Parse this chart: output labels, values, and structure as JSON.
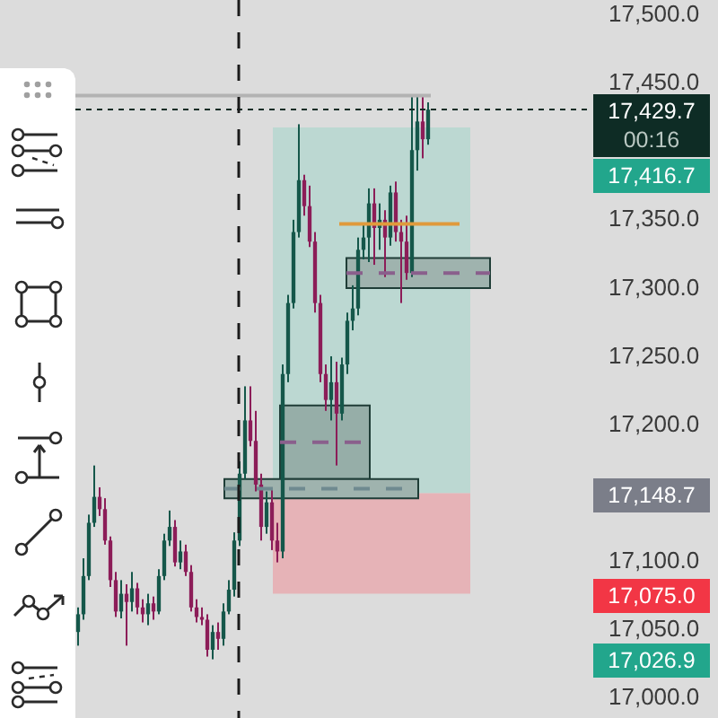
{
  "chart_data": {
    "type": "candlestick",
    "categories": [
      null,
      null,
      null,
      null,
      null,
      null,
      null,
      null,
      null,
      null,
      null,
      null,
      null,
      null,
      null,
      null,
      null,
      null,
      null,
      null,
      null,
      null,
      null,
      null,
      null,
      null,
      null,
      null,
      null,
      null,
      null,
      null,
      null,
      null,
      null,
      null,
      null,
      null,
      null,
      null,
      null,
      null,
      null,
      null,
      null,
      null,
      null,
      null,
      null,
      null,
      null,
      null,
      null,
      null,
      null,
      null,
      null,
      null,
      null,
      null,
      null,
      null,
      null,
      null,
      null,
      null,
      null,
      null,
      null,
      null,
      null,
      null,
      null,
      null,
      null,
      null,
      null,
      null,
      null,
      null,
      null,
      null,
      null,
      null,
      null,
      null,
      null,
      null,
      null,
      null,
      null,
      null,
      null,
      null,
      null,
      null
    ],
    "ohlc": [
      [
        17047,
        17065,
        17037,
        17060
      ],
      [
        17060,
        17101,
        17056,
        17088
      ],
      [
        17088,
        17133,
        17085,
        17127
      ],
      [
        17127,
        17169,
        17124,
        17146
      ],
      [
        17146,
        17153,
        17132,
        17137
      ],
      [
        17137,
        17145,
        17111,
        17114
      ],
      [
        17114,
        17117,
        17080,
        17085
      ],
      [
        17085,
        17091,
        17058,
        17062
      ],
      [
        17062,
        17085,
        17057,
        17075
      ],
      [
        17075,
        17082,
        17037,
        17069
      ],
      [
        17069,
        17091,
        17062,
        17079
      ],
      [
        17079,
        17083,
        17060,
        17065
      ],
      [
        17065,
        17071,
        17054,
        17060
      ],
      [
        17060,
        17075,
        17052,
        17068
      ],
      [
        17068,
        17073,
        17056,
        17062
      ],
      [
        17062,
        17093,
        17060,
        17088
      ],
      [
        17088,
        17119,
        17085,
        17114
      ],
      [
        17114,
        17136,
        17110,
        17124
      ],
      [
        17124,
        17129,
        17095,
        17098
      ],
      [
        17098,
        17114,
        17093,
        17106
      ],
      [
        17106,
        17111,
        17088,
        17091
      ],
      [
        17091,
        17096,
        17062,
        17065
      ],
      [
        17065,
        17071,
        17054,
        17058
      ],
      [
        17058,
        17065,
        17052,
        17056
      ],
      [
        17056,
        17060,
        17029,
        17034
      ],
      [
        17034,
        17052,
        17027,
        17047
      ],
      [
        17047,
        17054,
        17034,
        17042
      ],
      [
        17042,
        17068,
        17037,
        17062
      ],
      [
        17062,
        17085,
        17060,
        17078
      ],
      [
        17078,
        17120,
        17073,
        17114
      ],
      [
        17114,
        17172,
        17110,
        17163
      ],
      [
        17163,
        17227,
        17159,
        17202
      ],
      [
        17202,
        17227,
        17183,
        17187
      ],
      [
        17187,
        17209,
        17150,
        17155
      ],
      [
        17155,
        17163,
        17114,
        17124
      ],
      [
        17124,
        17150,
        17119,
        17142
      ],
      [
        17142,
        17153,
        17107,
        17114
      ],
      [
        17114,
        17127,
        17098,
        17106
      ],
      [
        17106,
        17243,
        17101,
        17236
      ],
      [
        17236,
        17294,
        17230,
        17288
      ],
      [
        17288,
        17349,
        17284,
        17340
      ],
      [
        17340,
        17419,
        17336,
        17378
      ],
      [
        17378,
        17382,
        17352,
        17359
      ],
      [
        17359,
        17374,
        17329,
        17333
      ],
      [
        17333,
        17340,
        17281,
        17288
      ],
      [
        17288,
        17294,
        17230,
        17236
      ],
      [
        17236,
        17243,
        17209,
        17217
      ],
      [
        17217,
        17249,
        17202,
        17230
      ],
      [
        17230,
        17245,
        17169,
        17207
      ],
      [
        17207,
        17248,
        17202,
        17243
      ],
      [
        17243,
        17281,
        17236,
        17275
      ],
      [
        17275,
        17301,
        17268,
        17284
      ],
      [
        17284,
        17336,
        17279,
        17327
      ],
      [
        17327,
        17346,
        17320,
        17336
      ],
      [
        17336,
        17372,
        17318,
        17361
      ],
      [
        17361,
        17372,
        17316,
        17343
      ],
      [
        17343,
        17361,
        17327,
        17349
      ],
      [
        17349,
        17356,
        17307,
        17336
      ],
      [
        17336,
        17374,
        17330,
        17369
      ],
      [
        17369,
        17377,
        17333,
        17340
      ],
      [
        17340,
        17349,
        17288,
        17333
      ],
      [
        17333,
        17352,
        17305,
        17310
      ],
      [
        17310,
        17439,
        17307,
        17400
      ],
      [
        17400,
        17440,
        17385,
        17421
      ],
      [
        17421,
        17439,
        17394,
        17408
      ],
      [
        17408,
        17435,
        17404,
        17429.7
      ],
      null,
      null,
      null,
      null,
      null,
      null,
      null,
      null,
      null,
      null,
      null,
      null,
      null,
      null,
      null,
      null,
      null,
      null,
      null,
      null,
      null,
      null,
      null,
      null,
      null,
      null,
      null,
      null,
      null,
      null
    ],
    "colors": [
      "#15574a",
      "#15574a",
      "#15574a",
      "#15574a",
      "#8c1d58",
      "#8c1d58",
      "#8c1d58",
      "#8c1d58",
      "#15574a",
      "#8c1d58",
      "#15574a",
      "#8c1d58",
      "#8c1d58",
      "#15574a",
      "#8c1d58",
      "#15574a",
      "#15574a",
      "#15574a",
      "#8c1d58",
      "#15574a",
      "#8c1d58",
      "#8c1d58",
      "#8c1d58",
      "#8c1d58",
      "#8c1d58",
      "#15574a",
      "#8c1d58",
      "#15574a",
      "#15574a",
      "#15574a",
      "#15574a",
      "#15574a",
      "#8c1d58",
      "#8c1d58",
      "#8c1d58",
      "#15574a",
      "#8c1d58",
      "#8c1d58",
      "#15574a",
      "#15574a",
      "#15574a",
      "#15574a",
      "#8c1d58",
      "#8c1d58",
      "#8c1d58",
      "#8c1d58",
      "#8c1d58",
      "#15574a",
      "#8c1d58",
      "#15574a",
      "#15574a",
      "#15574a",
      "#15574a",
      "#15574a",
      "#15574a",
      "#8c1d58",
      "#15574a",
      "#8c1d58",
      "#15574a",
      "#8c1d58",
      "#8c1d58",
      "#8c1d58",
      "#15574a",
      "#15574a",
      "#8c1d58",
      "#15574a",
      null,
      null,
      null,
      null,
      null,
      null,
      null,
      null,
      null,
      null,
      null,
      null,
      null,
      null,
      null,
      null,
      null,
      null,
      null,
      null,
      null,
      null,
      null,
      null,
      null,
      null,
      null,
      null,
      null,
      null
    ],
    "bands": [
      {
        "axis": "y",
        "from": 17148.7,
        "to": 17416.7,
        "color": "#bcd8d2"
      },
      {
        "axis": "y",
        "from": 17075.0,
        "to": 17148.7,
        "color": "#e6b3b7"
      },
      {
        "axis": "y",
        "from": 17299,
        "to": 17321,
        "color": "#9fb3ae"
      },
      {
        "axis": "y",
        "from": 17159,
        "to": 17213,
        "color": "#96aea8"
      },
      {
        "axis": "y",
        "from": 17145,
        "to": 17159,
        "color": "#9fb3ae"
      }
    ],
    "ref_lines": [
      {
        "axis": "y",
        "value": 17429.7,
        "label": "17,429.7\n00:16",
        "color": "#0e2c25",
        "line_style": "dotted"
      },
      {
        "axis": "y",
        "value": 17440,
        "color": "#b3b3b3",
        "line_style": "solid"
      },
      {
        "axis": "y",
        "value": 17346,
        "color": "#e09a3c",
        "line_style": "solid"
      },
      {
        "axis": "y",
        "value": 17310,
        "color": "#8a5f8c",
        "line_style": "dashed"
      },
      {
        "axis": "y",
        "value": 17186,
        "color": "#8a5f8c",
        "line_style": "dashed"
      },
      {
        "axis": "y",
        "value": 17152,
        "color": "#6f8a90",
        "line_style": "dashed"
      }
    ],
    "annotations": [
      "17,416.7",
      "17,148.7",
      "17,075.0",
      "17,026.9"
    ],
    "ylim": [
      16984,
      17510
    ],
    "yticks": [
      {
        "value": 17000,
        "label": "17,000.0"
      },
      {
        "value": 17050,
        "label": "17,050.0"
      },
      {
        "value": 17100,
        "label": "17,100.0"
      },
      {
        "value": 17200,
        "label": "17,200.0"
      },
      {
        "value": 17250,
        "label": "17,250.0"
      },
      {
        "value": 17300,
        "label": "17,300.0"
      },
      {
        "value": 17350,
        "label": "17,350.0"
      },
      {
        "value": 17450,
        "label": "17,450.0"
      },
      {
        "value": 17500,
        "label": "17,500.0"
      }
    ],
    "tick_labels": "y",
    "grid": false
  }
}
